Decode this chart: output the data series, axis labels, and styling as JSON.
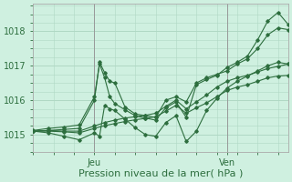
{
  "title": "",
  "xlabel": "Pression niveau de la mer( hPa )",
  "ylabel": "",
  "bg_color": "#cff0e0",
  "grid_color": "#b0d8c4",
  "line_color": "#2d6e3e",
  "ylim": [
    1014.5,
    1018.8
  ],
  "xlim": [
    0,
    50
  ],
  "xtick_positions": [
    12,
    38
  ],
  "xtick_labels": [
    "Jeu",
    "Ven"
  ],
  "ytick_positions": [
    1015,
    1016,
    1017,
    1018
  ],
  "ytick_fontsize": 7,
  "xtick_fontsize": 7,
  "xlabel_fontsize": 8,
  "lines": [
    [
      0,
      1015.1,
      3,
      1015.12,
      6,
      1015.15,
      9,
      1015.18,
      12,
      1016.0,
      13,
      1017.1,
      14,
      1016.8,
      15,
      1016.55,
      16,
      1016.5,
      18,
      1015.8,
      20,
      1015.6,
      22,
      1015.55,
      24,
      1015.5,
      26,
      1016.0,
      28,
      1016.1,
      30,
      1015.95,
      32,
      1016.5,
      34,
      1016.65,
      36,
      1016.75,
      38,
      1016.85,
      40,
      1017.05,
      42,
      1017.2,
      44,
      1017.5,
      46,
      1017.9,
      48,
      1018.1,
      50,
      1018.05
    ],
    [
      0,
      1015.1,
      3,
      1015.05,
      6,
      1014.95,
      9,
      1014.85,
      12,
      1015.05,
      13,
      1014.95,
      14,
      1015.85,
      15,
      1015.75,
      16,
      1015.7,
      18,
      1015.45,
      20,
      1015.2,
      22,
      1015.0,
      24,
      1014.95,
      26,
      1015.35,
      28,
      1015.55,
      30,
      1014.8,
      32,
      1015.1,
      34,
      1015.7,
      36,
      1016.05,
      38,
      1016.35,
      40,
      1016.55,
      42,
      1016.7,
      44,
      1016.85,
      46,
      1017.0,
      48,
      1017.1,
      50,
      1017.05
    ],
    [
      0,
      1015.1,
      3,
      1015.12,
      6,
      1015.1,
      9,
      1015.1,
      12,
      1015.25,
      14,
      1015.35,
      16,
      1015.42,
      18,
      1015.48,
      20,
      1015.52,
      22,
      1015.56,
      24,
      1015.62,
      26,
      1015.82,
      28,
      1016.0,
      30,
      1015.75,
      32,
      1015.95,
      34,
      1016.15,
      36,
      1016.38,
      38,
      1016.55,
      40,
      1016.65,
      42,
      1016.72,
      44,
      1016.82,
      46,
      1016.92,
      48,
      1016.98,
      50,
      1017.05
    ],
    [
      0,
      1015.1,
      3,
      1015.1,
      6,
      1015.08,
      9,
      1015.05,
      12,
      1015.18,
      14,
      1015.26,
      16,
      1015.32,
      18,
      1015.38,
      20,
      1015.43,
      22,
      1015.47,
      24,
      1015.52,
      26,
      1015.68,
      28,
      1015.85,
      30,
      1015.62,
      32,
      1015.78,
      34,
      1015.92,
      36,
      1016.1,
      38,
      1016.28,
      40,
      1016.38,
      42,
      1016.45,
      44,
      1016.55,
      46,
      1016.65,
      48,
      1016.7,
      50,
      1016.72
    ],
    [
      0,
      1015.12,
      3,
      1015.18,
      6,
      1015.22,
      9,
      1015.28,
      12,
      1016.1,
      13,
      1017.05,
      14,
      1016.65,
      15,
      1016.1,
      16,
      1015.9,
      18,
      1015.72,
      20,
      1015.55,
      22,
      1015.48,
      24,
      1015.42,
      26,
      1015.78,
      28,
      1015.95,
      30,
      1015.5,
      32,
      1016.45,
      34,
      1016.6,
      36,
      1016.72,
      38,
      1016.95,
      40,
      1017.1,
      42,
      1017.28,
      44,
      1017.75,
      46,
      1018.3,
      48,
      1018.55,
      50,
      1018.2
    ]
  ]
}
